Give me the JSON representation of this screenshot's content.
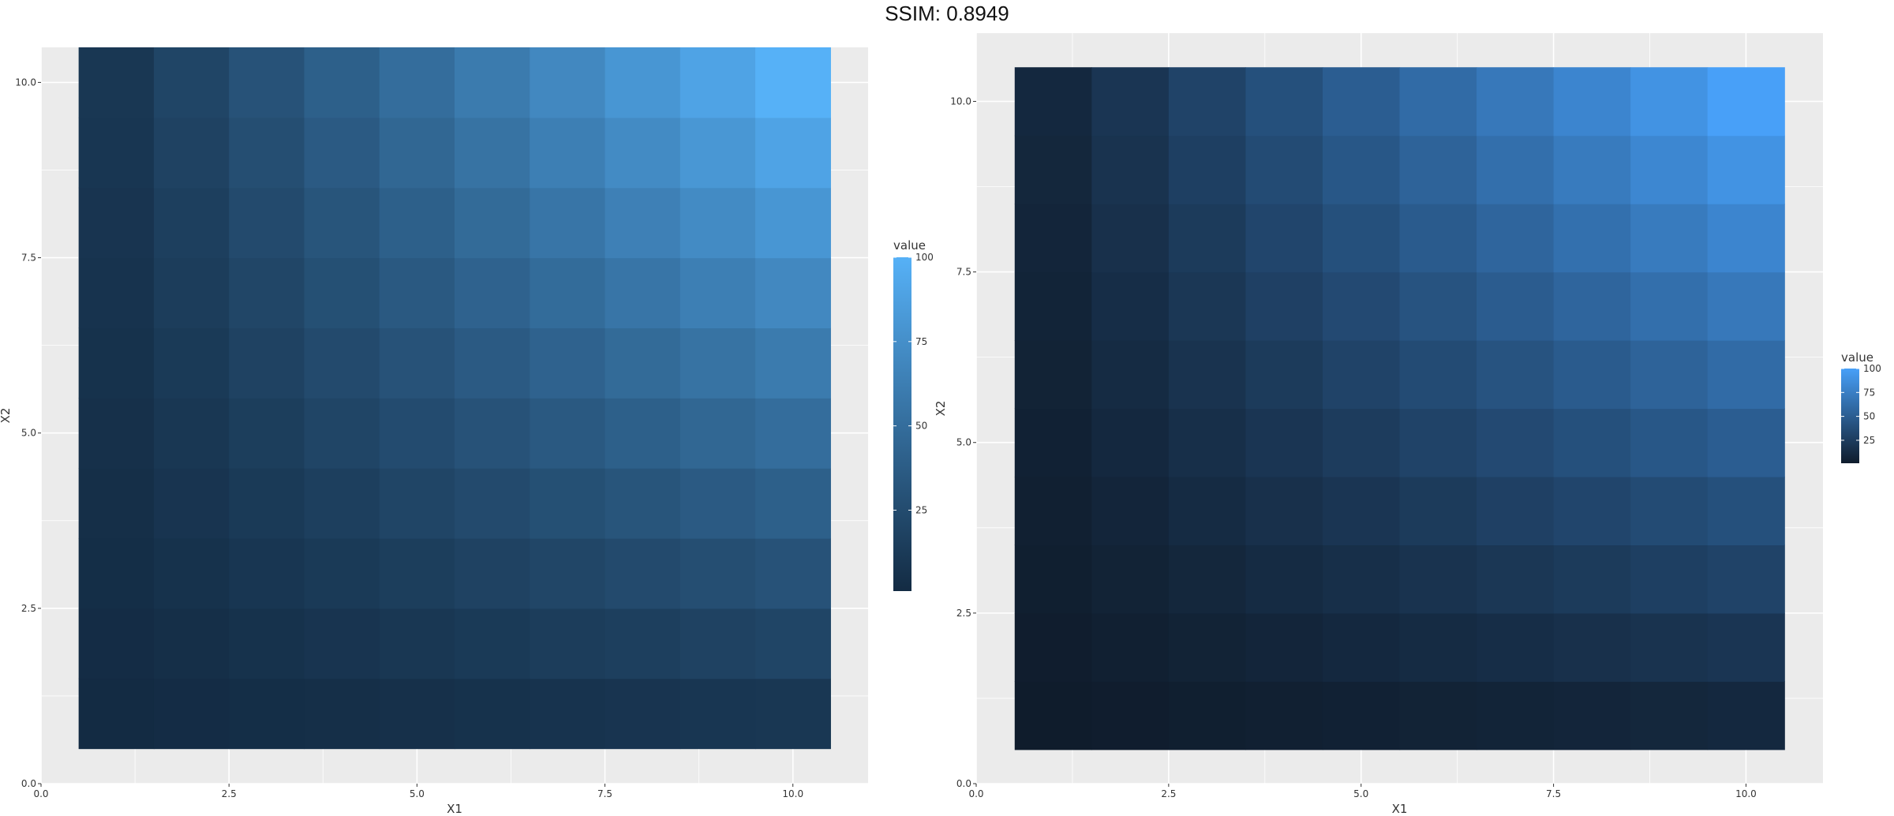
{
  "header": {
    "title": "SSIM: 0.8949"
  },
  "chart_data": [
    {
      "type": "heatmap",
      "x": [
        1,
        2,
        3,
        4,
        5,
        6,
        7,
        8,
        9,
        10
      ],
      "y": [
        1,
        2,
        3,
        4,
        5,
        6,
        7,
        8,
        9,
        10
      ],
      "value_rule": "value = X1 * X2",
      "xlabel": "X1",
      "ylabel": "X2",
      "xlim": [
        0,
        11
      ],
      "ylim": [
        0,
        10.5
      ],
      "x_ticks": [
        "0.0",
        "2.5",
        "5.0",
        "7.5",
        "10.0"
      ],
      "y_ticks": [
        "0.0",
        "2.5",
        "5.0",
        "7.5",
        "10.0"
      ],
      "grid": true,
      "legend": {
        "title": "value",
        "ticks": [
          "25",
          "50",
          "75",
          "100"
        ],
        "placement": "right",
        "range": [
          1,
          100
        ]
      },
      "colors": {
        "low": "#132B43",
        "high": "#56B1F7",
        "panel": "#EBEBEB",
        "grid": "#FFFFFF"
      }
    },
    {
      "type": "heatmap",
      "x": [
        1,
        2,
        3,
        4,
        5,
        6,
        7,
        8,
        9,
        10
      ],
      "y": [
        1,
        2,
        3,
        4,
        5,
        6,
        7,
        8,
        9,
        10
      ],
      "value_rule": "value = X1 * X2",
      "xlabel": "X1",
      "ylabel": "X2",
      "xlim": [
        0,
        11
      ],
      "ylim": [
        0,
        11
      ],
      "x_ticks": [
        "0.0",
        "2.5",
        "5.0",
        "7.5",
        "10.0"
      ],
      "y_ticks": [
        "0.0",
        "2.5",
        "5.0",
        "7.5",
        "10.0"
      ],
      "grid": true,
      "legend": {
        "title": "value",
        "ticks": [
          "25",
          "50",
          "75",
          "100"
        ],
        "placement": "right",
        "range": [
          1,
          100
        ]
      },
      "colors": {
        "low": "#0F1C2C",
        "high": "#48A0F8",
        "panel": "#EBEBEB",
        "grid": "#FFFFFF"
      }
    }
  ]
}
